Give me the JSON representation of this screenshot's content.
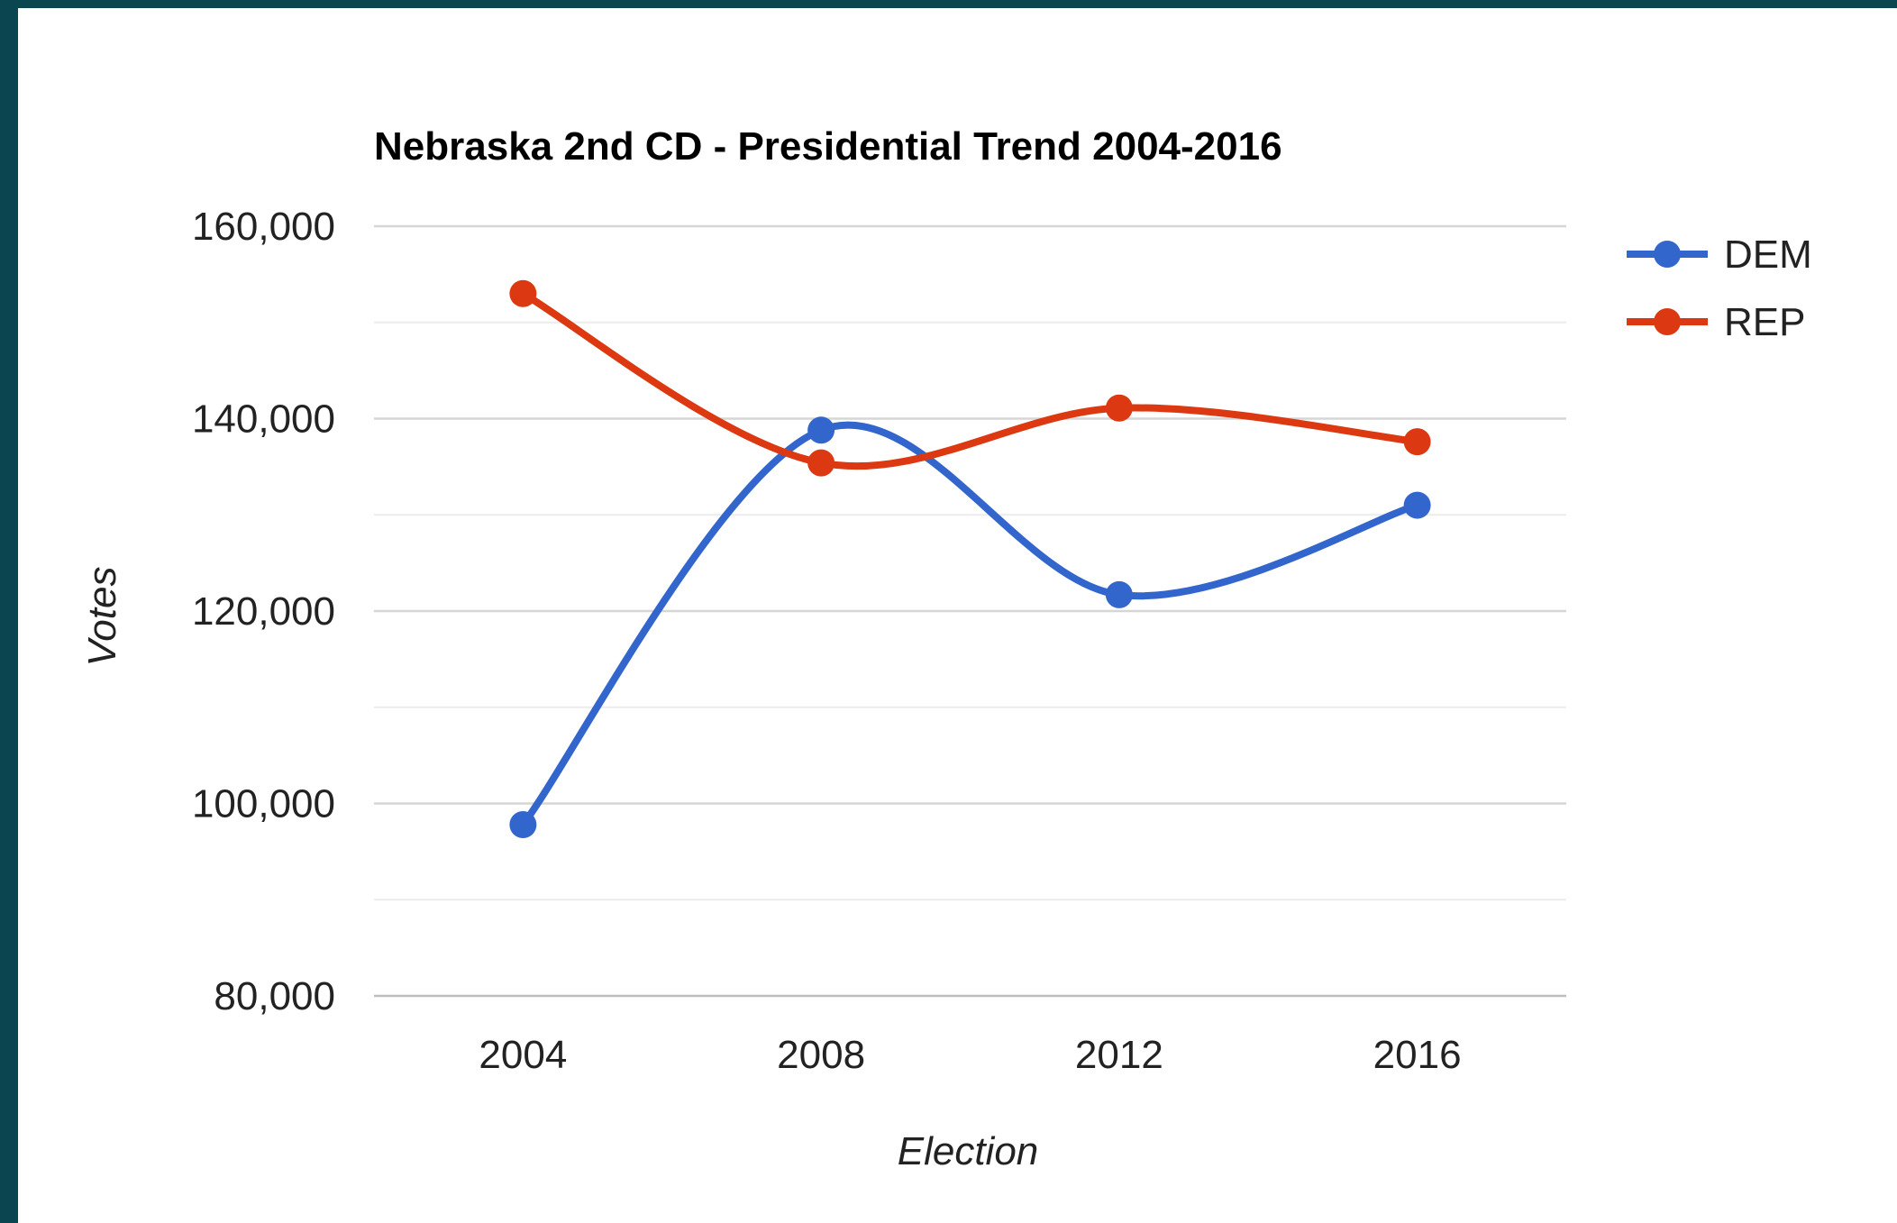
{
  "chart_data": {
    "type": "line",
    "title": "Nebraska 2nd CD - Presidential Trend 2004-2016",
    "xlabel": "Election",
    "ylabel": "Votes",
    "categories": [
      "2004",
      "2008",
      "2012",
      "2016"
    ],
    "ylim": [
      80000,
      160000
    ],
    "yticks": [
      80000,
      100000,
      120000,
      140000,
      160000
    ],
    "ytick_labels": [
      "80,000",
      "100,000",
      "120,000",
      "140,000",
      "160,000"
    ],
    "minor_gridlines": [
      90000,
      110000,
      130000,
      150000
    ],
    "grid": true,
    "smooth": true,
    "legend": "right",
    "series": [
      {
        "name": "DEM",
        "color": "#3366cc",
        "values": [
          97800,
          138800,
          121700,
          131000
        ]
      },
      {
        "name": "REP",
        "color": "#dc3912",
        "values": [
          153000,
          135400,
          141100,
          137600
        ]
      }
    ]
  }
}
